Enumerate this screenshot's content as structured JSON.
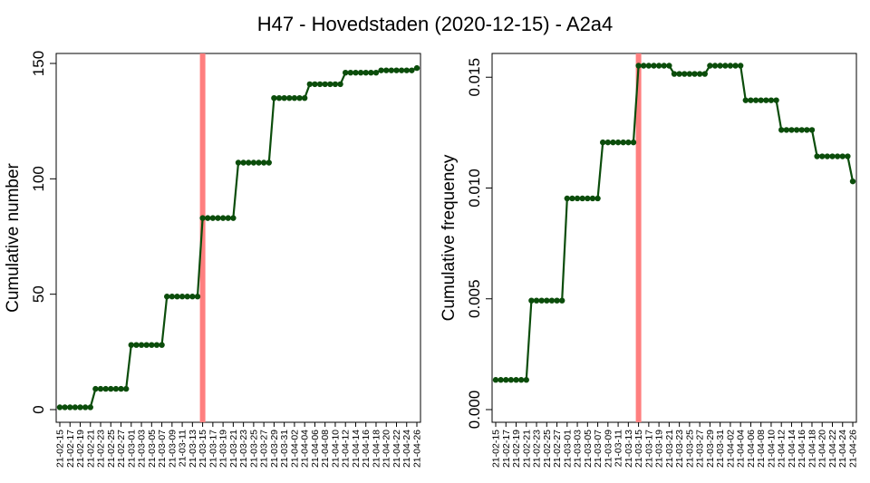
{
  "title": "H47 - Hovedstaden (2020-12-15) - A2a4",
  "colors": {
    "line": "#0b4d0b",
    "point": "#0b4d0b",
    "vline": "#ff7f7f",
    "axis": "#000000"
  },
  "chart_data": [
    {
      "type": "line",
      "ylabel": "Cumulative number",
      "ylim": [
        0,
        150
      ],
      "yticks": [
        0,
        50,
        100,
        150
      ],
      "ytick_labels": [
        "0",
        "50",
        "100",
        "150"
      ],
      "vline_x": "21-03-15",
      "x": [
        "21-02-15",
        "21-02-16",
        "21-02-17",
        "21-02-18",
        "21-02-19",
        "21-02-20",
        "21-02-21",
        "21-02-22",
        "21-02-23",
        "21-02-24",
        "21-02-25",
        "21-02-26",
        "21-02-27",
        "21-02-28",
        "21-03-01",
        "21-03-02",
        "21-03-03",
        "21-03-04",
        "21-03-05",
        "21-03-06",
        "21-03-07",
        "21-03-08",
        "21-03-09",
        "21-03-10",
        "21-03-11",
        "21-03-12",
        "21-03-13",
        "21-03-14",
        "21-03-15",
        "21-03-16",
        "21-03-17",
        "21-03-18",
        "21-03-19",
        "21-03-20",
        "21-03-21",
        "21-03-22",
        "21-03-23",
        "21-03-24",
        "21-03-25",
        "21-03-26",
        "21-03-27",
        "21-03-28",
        "21-03-29",
        "21-03-30",
        "21-03-31",
        "21-04-01",
        "21-04-02",
        "21-04-03",
        "21-04-04",
        "21-04-05",
        "21-04-06",
        "21-04-07",
        "21-04-08",
        "21-04-09",
        "21-04-10",
        "21-04-11",
        "21-04-12",
        "21-04-13",
        "21-04-14",
        "21-04-15",
        "21-04-16",
        "21-04-17",
        "21-04-18",
        "21-04-19",
        "21-04-20",
        "21-04-21",
        "21-04-22",
        "21-04-23",
        "21-04-24",
        "21-04-25",
        "21-04-26"
      ],
      "xtick_labels": [
        "21-02-15",
        "21-02-17",
        "21-02-19",
        "21-02-21",
        "21-02-23",
        "21-02-25",
        "21-02-27",
        "21-03-01",
        "21-03-03",
        "21-03-05",
        "21-03-07",
        "21-03-09",
        "21-03-11",
        "21-03-13",
        "21-03-15",
        "21-03-17",
        "21-03-19",
        "21-03-21",
        "21-03-23",
        "21-03-25",
        "21-03-27",
        "21-03-29",
        "21-03-31",
        "21-04-02",
        "21-04-04",
        "21-04-06",
        "21-04-08",
        "21-04-10",
        "21-04-12",
        "21-04-14",
        "21-04-16",
        "21-04-18",
        "21-04-20",
        "21-04-22",
        "21-04-24",
        "21-04-26"
      ],
      "values": [
        1,
        1,
        1,
        1,
        1,
        1,
        1,
        9,
        9,
        9,
        9,
        9,
        9,
        9,
        28,
        28,
        28,
        28,
        28,
        28,
        28,
        49,
        49,
        49,
        49,
        49,
        49,
        49,
        83,
        83,
        83,
        83,
        83,
        83,
        83,
        107,
        107,
        107,
        107,
        107,
        107,
        107,
        135,
        135,
        135,
        135,
        135,
        135,
        135,
        141,
        141,
        141,
        141,
        141,
        141,
        141,
        146,
        146,
        146,
        146,
        146,
        146,
        146,
        147,
        147,
        147,
        147,
        147,
        147,
        147,
        148
      ]
    },
    {
      "type": "line",
      "ylabel": "Cumulative frequency",
      "ylim": [
        0,
        0.0155
      ],
      "yticks": [
        0,
        0.005,
        0.01,
        0.015
      ],
      "ytick_labels": [
        "0.000",
        "0.005",
        "0.010",
        "0.015"
      ],
      "vline_x": "21-03-15",
      "x": [
        "21-02-15",
        "21-02-16",
        "21-02-17",
        "21-02-18",
        "21-02-19",
        "21-02-20",
        "21-02-21",
        "21-02-22",
        "21-02-23",
        "21-02-24",
        "21-02-25",
        "21-02-26",
        "21-02-27",
        "21-02-28",
        "21-03-01",
        "21-03-02",
        "21-03-03",
        "21-03-04",
        "21-03-05",
        "21-03-06",
        "21-03-07",
        "21-03-08",
        "21-03-09",
        "21-03-10",
        "21-03-11",
        "21-03-12",
        "21-03-13",
        "21-03-14",
        "21-03-15",
        "21-03-16",
        "21-03-17",
        "21-03-18",
        "21-03-19",
        "21-03-20",
        "21-03-21",
        "21-03-22",
        "21-03-23",
        "21-03-24",
        "21-03-25",
        "21-03-26",
        "21-03-27",
        "21-03-28",
        "21-03-29",
        "21-03-30",
        "21-03-31",
        "21-04-01",
        "21-04-02",
        "21-04-03",
        "21-04-04",
        "21-04-05",
        "21-04-06",
        "21-04-07",
        "21-04-08",
        "21-04-09",
        "21-04-10",
        "21-04-11",
        "21-04-12",
        "21-04-13",
        "21-04-14",
        "21-04-15",
        "21-04-16",
        "21-04-17",
        "21-04-18",
        "21-04-19",
        "21-04-20",
        "21-04-21",
        "21-04-22",
        "21-04-23",
        "21-04-24",
        "21-04-25",
        "21-04-26"
      ],
      "xtick_labels": [
        "21-02-15",
        "21-02-17",
        "21-02-19",
        "21-02-21",
        "21-02-23",
        "21-02-25",
        "21-02-27",
        "21-03-01",
        "21-03-03",
        "21-03-05",
        "21-03-07",
        "21-03-09",
        "21-03-11",
        "21-03-13",
        "21-03-15",
        "21-03-17",
        "21-03-19",
        "21-03-21",
        "21-03-23",
        "21-03-25",
        "21-03-27",
        "21-03-29",
        "21-03-31",
        "21-04-02",
        "21-04-04",
        "21-04-06",
        "21-04-08",
        "21-04-10",
        "21-04-12",
        "21-04-14",
        "21-04-16",
        "21-04-18",
        "21-04-20",
        "21-04-22",
        "21-04-24",
        "21-04-26"
      ],
      "values": [
        0.00134,
        0.00134,
        0.00134,
        0.00134,
        0.00134,
        0.00134,
        0.00134,
        0.00492,
        0.00492,
        0.00492,
        0.00492,
        0.00492,
        0.00492,
        0.00492,
        0.00953,
        0.00953,
        0.00953,
        0.00953,
        0.00953,
        0.00953,
        0.00953,
        0.01206,
        0.01206,
        0.01206,
        0.01206,
        0.01206,
        0.01206,
        0.01206,
        0.01552,
        0.01552,
        0.01552,
        0.01552,
        0.01552,
        0.01552,
        0.01552,
        0.01515,
        0.01515,
        0.01515,
        0.01515,
        0.01515,
        0.01515,
        0.01515,
        0.01552,
        0.01552,
        0.01552,
        0.01552,
        0.01552,
        0.01552,
        0.01552,
        0.01396,
        0.01396,
        0.01396,
        0.01396,
        0.01396,
        0.01396,
        0.01396,
        0.01262,
        0.01262,
        0.01262,
        0.01262,
        0.01262,
        0.01262,
        0.01262,
        0.01143,
        0.01143,
        0.01143,
        0.01143,
        0.01143,
        0.01143,
        0.01143,
        0.0103
      ]
    }
  ]
}
